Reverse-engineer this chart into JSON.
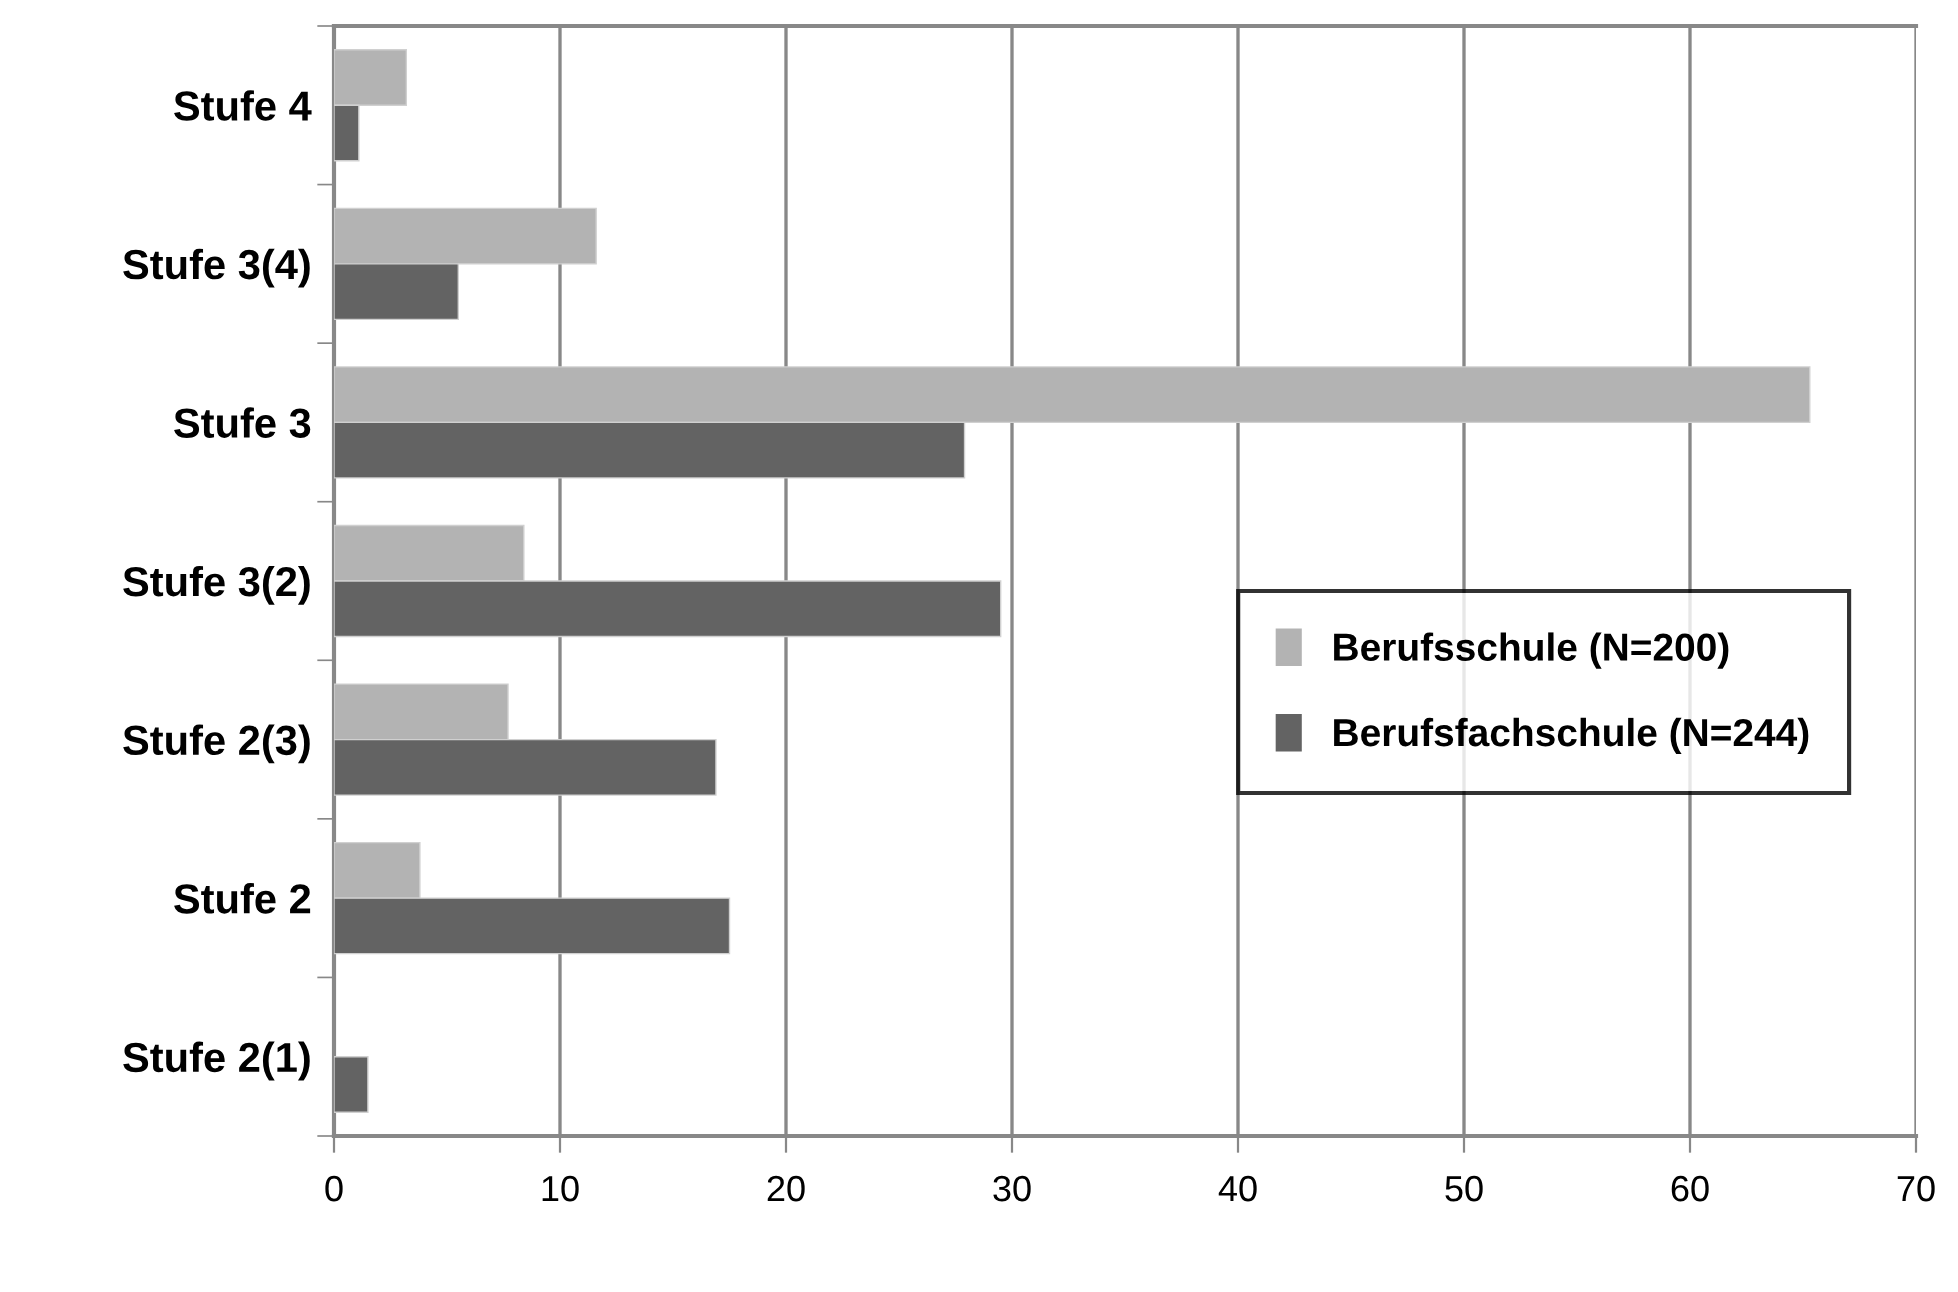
{
  "chart_data": {
    "type": "bar",
    "orientation": "horizontal",
    "categories": [
      "Stufe 4",
      "Stufe 3(4)",
      "Stufe 3",
      "Stufe 3(2)",
      "Stufe 2(3)",
      "Stufe 2",
      "Stufe 2(1)"
    ],
    "series": [
      {
        "name": "Berufsschule (N=200)",
        "color": "#b3b3b3",
        "values": [
          3.2,
          11.6,
          65.3,
          8.4,
          7.7,
          3.8,
          null
        ]
      },
      {
        "name": "Berufsfachschule (N=244)",
        "color": "#636363",
        "values": [
          1.1,
          5.5,
          27.9,
          29.5,
          16.9,
          17.5,
          1.5
        ]
      }
    ],
    "xlim": [
      0,
      70
    ],
    "xticks": [
      0,
      10,
      20,
      30,
      40,
      50,
      60,
      70
    ],
    "grid": "x",
    "legend": "right"
  }
}
